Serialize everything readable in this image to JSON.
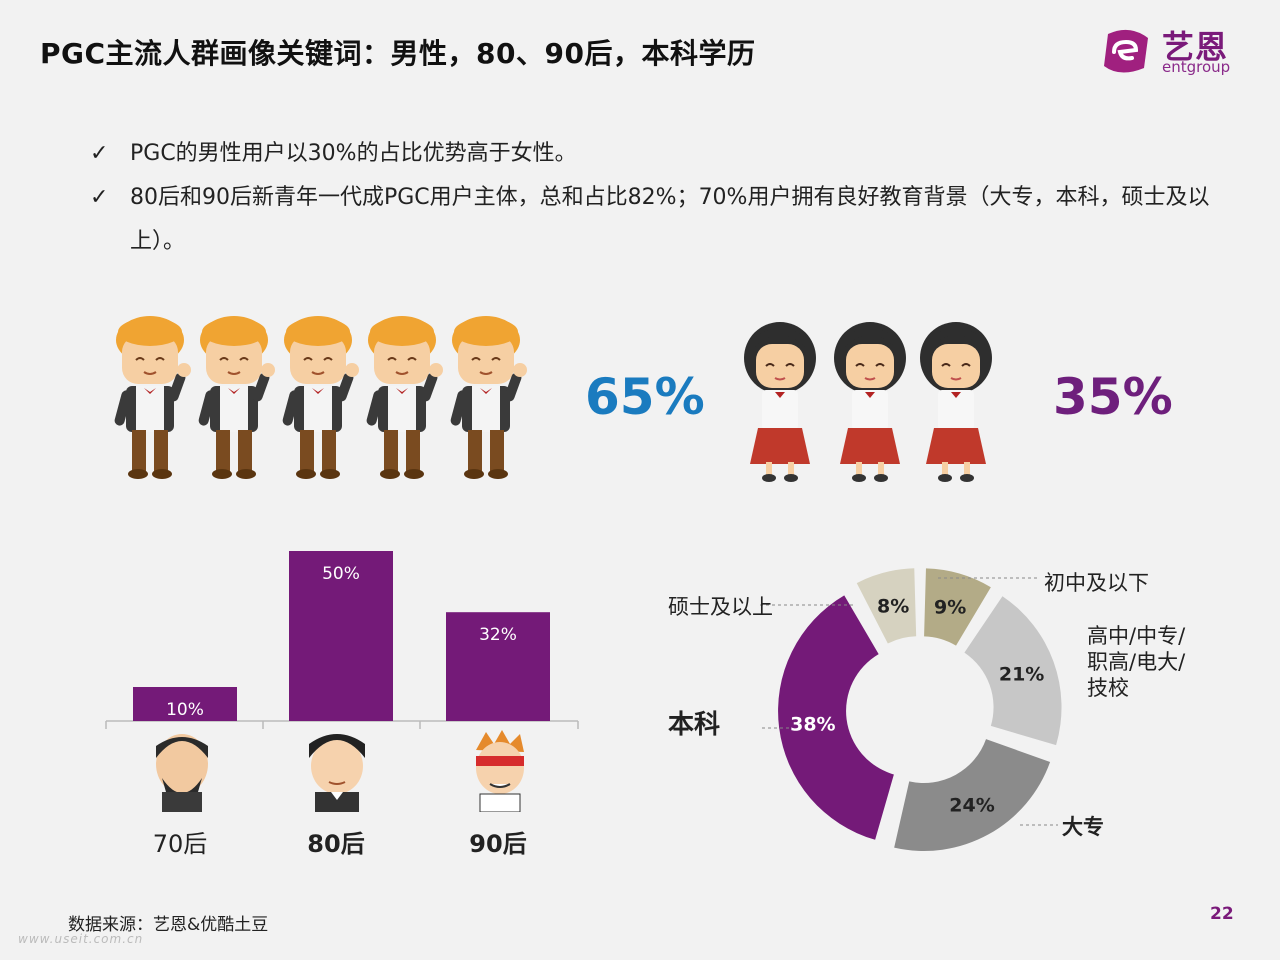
{
  "title": "PGC主流人群画像关键词：男性，80、90后，本科学历",
  "logo": {
    "cn": "艺恩",
    "en": "entgroup"
  },
  "bullets": [
    {
      "check": "✓",
      "text": "PGC的男性用户以30%的占比优势高于女性。"
    },
    {
      "check": "✓",
      "text": "80后和90后新青年一代成PGC用户主体，总和占比82%；70%用户拥有良好教育背景（大专，本科，硕士及以上）。"
    }
  ],
  "gender": {
    "male_pct": "65%",
    "female_pct": "35%",
    "male_color": "#1a7bbf",
    "female_color": "#6e1f7c"
  },
  "colors": {
    "purple": "#741a78",
    "accent": "#7a1a7a"
  },
  "chart_data": [
    {
      "type": "bar",
      "categories": [
        "70后",
        "80后",
        "90后"
      ],
      "values": [
        10,
        50,
        32
      ],
      "value_labels": [
        "10%",
        "50%",
        "32%"
      ],
      "color": "#741a78",
      "ylim": [
        0,
        55
      ]
    },
    {
      "type": "pie",
      "donut": true,
      "slices": [
        {
          "label": "初中及以下",
          "value": 9,
          "value_label": "9%",
          "color": "#b3ab87"
        },
        {
          "label": "高中/中专/职高/电大/技校",
          "value": 21,
          "value_label": "21%",
          "color": "#c7c7c7"
        },
        {
          "label": "大专",
          "value": 24,
          "value_label": "24%",
          "color": "#8b8b8b"
        },
        {
          "label": "本科",
          "value": 38,
          "value_label": "38%",
          "color": "#741a78"
        },
        {
          "label": "硕士及以上",
          "value": 8,
          "value_label": "8%",
          "color": "#d6d2c0"
        }
      ]
    }
  ],
  "generation_labels": [
    "70后",
    "80后",
    "90后"
  ],
  "donut_labels": {
    "junior": "初中及以下",
    "high_lines": [
      "高中/中专/",
      "职高/电大/",
      "技校"
    ],
    "college": "大专",
    "bachelor": "本科",
    "master": "硕士及以上"
  },
  "source": "数据来源：艺恩&优酷土豆",
  "watermark": "www.useit.com.cn",
  "page_number": "22"
}
